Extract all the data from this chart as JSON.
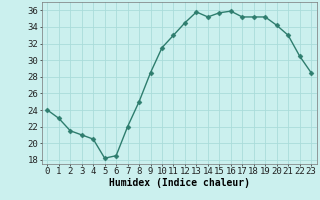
{
  "x": [
    0,
    1,
    2,
    3,
    4,
    5,
    6,
    7,
    8,
    9,
    10,
    11,
    12,
    13,
    14,
    15,
    16,
    17,
    18,
    19,
    20,
    21,
    22,
    23
  ],
  "y": [
    24,
    23,
    21.5,
    21,
    20.5,
    18.2,
    18.5,
    22,
    25,
    28.5,
    31.5,
    33,
    34.5,
    35.8,
    35.2,
    35.7,
    35.9,
    35.2,
    35.2,
    35.2,
    34.2,
    33,
    30.5,
    28.5
  ],
  "line_color": "#2e7d6e",
  "marker_color": "#2e7d6e",
  "bg_color": "#cbf0ee",
  "grid_color": "#aadcda",
  "xlabel": "Humidex (Indice chaleur)",
  "ylim": [
    17.5,
    37
  ],
  "xlim": [
    -0.5,
    23.5
  ],
  "yticks": [
    18,
    20,
    22,
    24,
    26,
    28,
    30,
    32,
    34,
    36
  ],
  "xticks": [
    0,
    1,
    2,
    3,
    4,
    5,
    6,
    7,
    8,
    9,
    10,
    11,
    12,
    13,
    14,
    15,
    16,
    17,
    18,
    19,
    20,
    21,
    22,
    23
  ],
  "xlabel_fontsize": 7,
  "tick_fontsize": 6.5,
  "linewidth": 1.0,
  "markersize": 2.5
}
